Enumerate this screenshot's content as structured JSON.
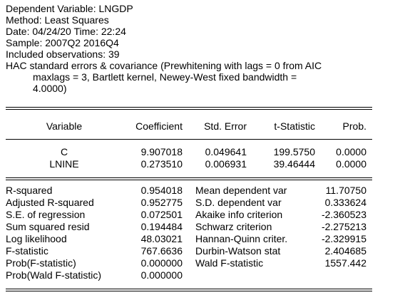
{
  "header": {
    "lines": [
      "Dependent Variable: LNGDP",
      "Method: Least Squares",
      "Date: 04/24/20   Time: 22:24",
      "Sample: 2007Q2 2016Q4",
      "Included observations: 39",
      "HAC standard errors & covariance (Prewhitening with lags = 0 from AIC",
      "maxlags = 3, Bartlett kernel, Newey-West fixed bandwidth =",
      "4.0000)"
    ]
  },
  "coef_table": {
    "columns": [
      "Variable",
      "Coefficient",
      "Std. Error",
      "t-Statistic",
      "Prob."
    ],
    "rows": [
      [
        "C",
        "9.907018",
        "0.049641",
        "199.5750",
        "0.0000"
      ],
      [
        "LNINE",
        "0.273510",
        "0.006931",
        "39.46444",
        "0.0000"
      ]
    ]
  },
  "stats": {
    "left": [
      [
        "R-squared",
        "0.954018"
      ],
      [
        "Adjusted R-squared",
        "0.952775"
      ],
      [
        "S.E. of regression",
        "0.072501"
      ],
      [
        "Sum squared resid",
        "0.194484"
      ],
      [
        "Log likelihood",
        "48.03021"
      ],
      [
        "F-statistic",
        "767.6636"
      ],
      [
        "Prob(F-statistic)",
        "0.000000"
      ],
      [
        "Prob(Wald F-statistic)",
        "0.000000"
      ]
    ],
    "right": [
      [
        "Mean dependent var",
        "11.70750"
      ],
      [
        "S.D. dependent var",
        "0.333624"
      ],
      [
        "Akaike info criterion",
        "-2.360523"
      ],
      [
        "Schwarz criterion",
        "-2.275213"
      ],
      [
        "Hannan-Quinn criter.",
        "-2.329915"
      ],
      [
        "Durbin-Watson stat",
        "2.404685"
      ],
      [
        "Wald F-statistic",
        "1557.442"
      ]
    ]
  }
}
